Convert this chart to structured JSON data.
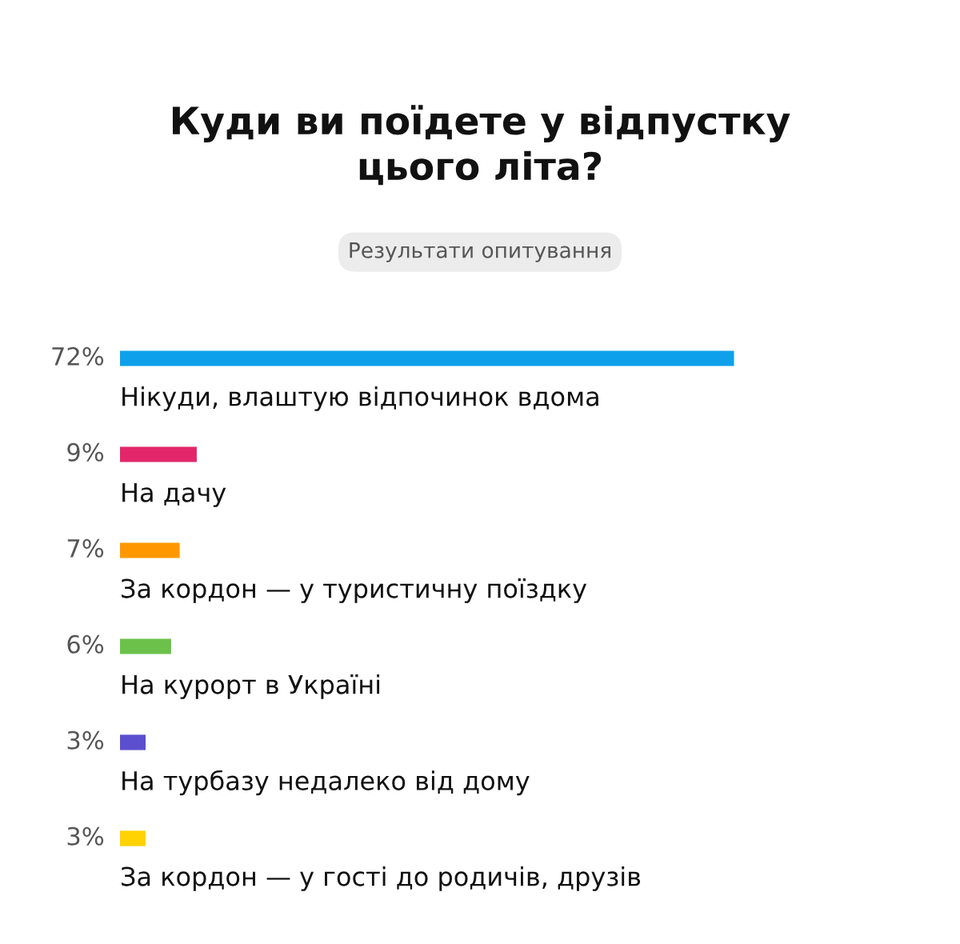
{
  "chart_data": {
    "type": "bar",
    "orientation": "horizontal",
    "title": "Куди ви поїдете у відпустку\nцього літа?",
    "subtitle": "Результати опитування",
    "categories": [
      "Нікуди, влаштую відпочинок вдома",
      "На дачу",
      "За кордон — у туристичну поїздку",
      "На курорт в Україні",
      "На турбазу недалеко від дому",
      "За кордон — у гості до родичів, друзів"
    ],
    "values": [
      72,
      9,
      7,
      6,
      3,
      3
    ],
    "colors": [
      "#0fa0ea",
      "#e3266a",
      "#ff9800",
      "#6cc14a",
      "#5b4fd0",
      "#ffd200"
    ],
    "value_labels": [
      "72%",
      "9%",
      "7%",
      "6%",
      "3%",
      "3%"
    ]
  }
}
